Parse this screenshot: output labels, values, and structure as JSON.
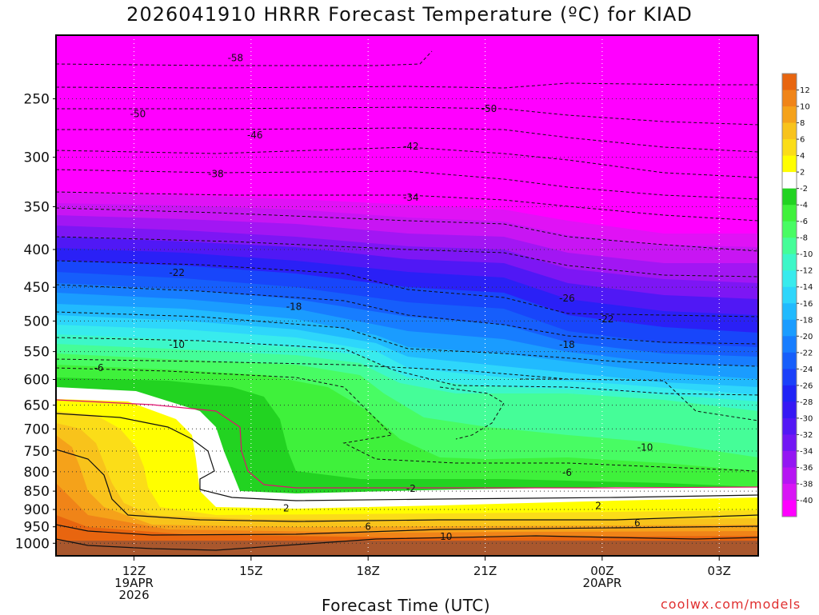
{
  "chart_data": {
    "type": "heatmap",
    "title": "2026041910 HRRR Forecast Temperature (ºC) for KIAD",
    "xlabel": "Forecast Time (UTC)",
    "ylabel": "",
    "credit": "coolwx.com/models",
    "y_axis": {
      "scale": "log-pressure",
      "ticks": [
        250,
        300,
        350,
        400,
        450,
        500,
        550,
        600,
        650,
        700,
        750,
        800,
        850,
        900,
        950,
        1000
      ],
      "range_hpa": [
        205,
        1040
      ]
    },
    "x_axis": {
      "range_hours": [
        10,
        28
      ],
      "ticks": [
        {
          "hour": 12,
          "lines": [
            "12Z",
            "19APR",
            "2026"
          ]
        },
        {
          "hour": 15,
          "lines": [
            "15Z"
          ]
        },
        {
          "hour": 18,
          "lines": [
            "18Z"
          ]
        },
        {
          "hour": 21,
          "lines": [
            "21Z"
          ]
        },
        {
          "hour": 24,
          "lines": [
            "00Z",
            "20APR"
          ]
        },
        {
          "hour": 27,
          "lines": [
            "03Z"
          ]
        }
      ]
    },
    "grid": true,
    "colorbar": {
      "placement": "right",
      "labels": [
        "12",
        "10",
        "8",
        "6",
        "4",
        "2",
        "-2",
        "-4",
        "-6",
        "-8",
        "-10",
        "-12",
        "-14",
        "-16",
        "-18",
        "-20",
        "-22",
        "-24",
        "-26",
        "-28",
        "-30",
        "-32",
        "-34",
        "-36",
        "-38",
        "-40"
      ],
      "colors": [
        "#e8650f",
        "#f08418",
        "#f5a21a",
        "#f8c31b",
        "#fbdd18",
        "#fffe00",
        "#ffffff",
        "#22d321",
        "#3ff13b",
        "#48fc63",
        "#45fd98",
        "#3df7c8",
        "#38ebed",
        "#2ed6fb",
        "#21bafe",
        "#1a9cff",
        "#177dff",
        "#165efb",
        "#1a40fa",
        "#1f23f6",
        "#3618f4",
        "#5317f5",
        "#7216f4",
        "#9416f3",
        "#b614f3",
        "#d815f5",
        "#ff00ff"
      ]
    },
    "contour_labels": [
      {
        "value": "-58",
        "hour": 14.6,
        "hpa": 220
      },
      {
        "value": "-50",
        "hour": 12.1,
        "hpa": 262
      },
      {
        "value": "-50",
        "hour": 21.1,
        "hpa": 258
      },
      {
        "value": "-46",
        "hour": 15.1,
        "hpa": 280
      },
      {
        "value": "-42",
        "hour": 19.1,
        "hpa": 290
      },
      {
        "value": "-38",
        "hour": 14.1,
        "hpa": 316
      },
      {
        "value": "-34",
        "hour": 19.1,
        "hpa": 340
      },
      {
        "value": "-26",
        "hour": 23.1,
        "hpa": 466
      },
      {
        "value": "-22",
        "hour": 13.1,
        "hpa": 430
      },
      {
        "value": "-22",
        "hour": 24.1,
        "hpa": 497
      },
      {
        "value": "-18",
        "hour": 16.1,
        "hpa": 478
      },
      {
        "value": "-18",
        "hour": 23.1,
        "hpa": 538
      },
      {
        "value": "-10",
        "hour": 13.1,
        "hpa": 538
      },
      {
        "value": "-10",
        "hour": 25.1,
        "hpa": 742
      },
      {
        "value": "-6",
        "hour": 11.1,
        "hpa": 579
      },
      {
        "value": "-6",
        "hour": 23.1,
        "hpa": 802
      },
      {
        "value": "-2",
        "hour": 19.1,
        "hpa": 843
      },
      {
        "value": "2",
        "hour": 15.9,
        "hpa": 897
      },
      {
        "value": "2",
        "hour": 23.9,
        "hpa": 890
      },
      {
        "value": "6",
        "hour": 18.0,
        "hpa": 950
      },
      {
        "value": "6",
        "hour": 24.9,
        "hpa": 939
      },
      {
        "value": "10",
        "hour": 20.0,
        "hpa": 980
      }
    ]
  }
}
